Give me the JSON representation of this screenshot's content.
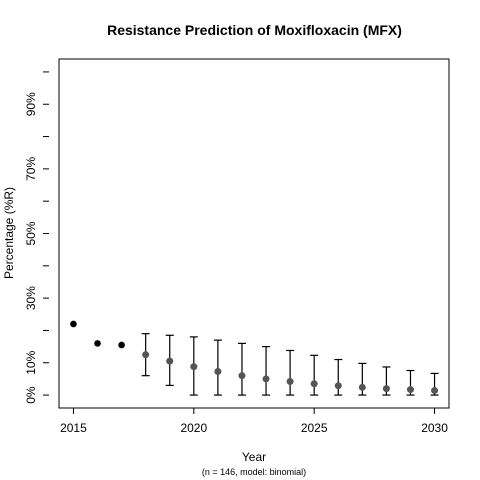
{
  "chart_data": {
    "type": "scatter",
    "title": "Resistance Prediction of Moxifloxacin (MFX)",
    "xlabel": "Year",
    "ylabel": "Percentage (%R)",
    "subtitle": "(n = 146, model: binomial)",
    "xlim": [
      2014.4,
      2030.6
    ],
    "ylim": [
      -4,
      104
    ],
    "x_ticks": [
      2015,
      2020,
      2025,
      2030
    ],
    "y_ticks": [
      0,
      10,
      20,
      30,
      40,
      50,
      60,
      70,
      80,
      90,
      100
    ],
    "y_tick_labels": [
      {
        "value": 0,
        "label": "0%"
      },
      {
        "value": 10,
        "label": "10%"
      },
      {
        "value": 30,
        "label": "30%"
      },
      {
        "value": 50,
        "label": "50%"
      },
      {
        "value": 70,
        "label": "70%"
      },
      {
        "value": 90,
        "label": "90%"
      }
    ],
    "observed": {
      "color": "#000000",
      "points": [
        {
          "x": 2015,
          "y": 22.0
        },
        {
          "x": 2016,
          "y": 16.0
        },
        {
          "x": 2017,
          "y": 15.5
        }
      ]
    },
    "predicted": {
      "color": "#555555",
      "points": [
        {
          "x": 2018,
          "y": 12.5,
          "low": 6.0,
          "high": 19.0
        },
        {
          "x": 2019,
          "y": 10.5,
          "low": 3.0,
          "high": 18.5
        },
        {
          "x": 2020,
          "y": 8.8,
          "low": 0.0,
          "high": 18.0
        },
        {
          "x": 2021,
          "y": 7.3,
          "low": 0.0,
          "high": 17.0
        },
        {
          "x": 2022,
          "y": 6.0,
          "low": 0.0,
          "high": 16.0
        },
        {
          "x": 2023,
          "y": 5.0,
          "low": 0.0,
          "high": 15.0
        },
        {
          "x": 2024,
          "y": 4.2,
          "low": 0.0,
          "high": 13.8
        },
        {
          "x": 2025,
          "y": 3.5,
          "low": 0.0,
          "high": 12.3
        },
        {
          "x": 2026,
          "y": 2.9,
          "low": 0.0,
          "high": 11.0
        },
        {
          "x": 2027,
          "y": 2.4,
          "low": 0.0,
          "high": 9.8
        },
        {
          "x": 2028,
          "y": 2.0,
          "low": 0.0,
          "high": 8.7
        },
        {
          "x": 2029,
          "y": 1.7,
          "low": 0.0,
          "high": 7.6
        },
        {
          "x": 2030,
          "y": 1.4,
          "low": 0.0,
          "high": 6.7
        }
      ]
    }
  }
}
